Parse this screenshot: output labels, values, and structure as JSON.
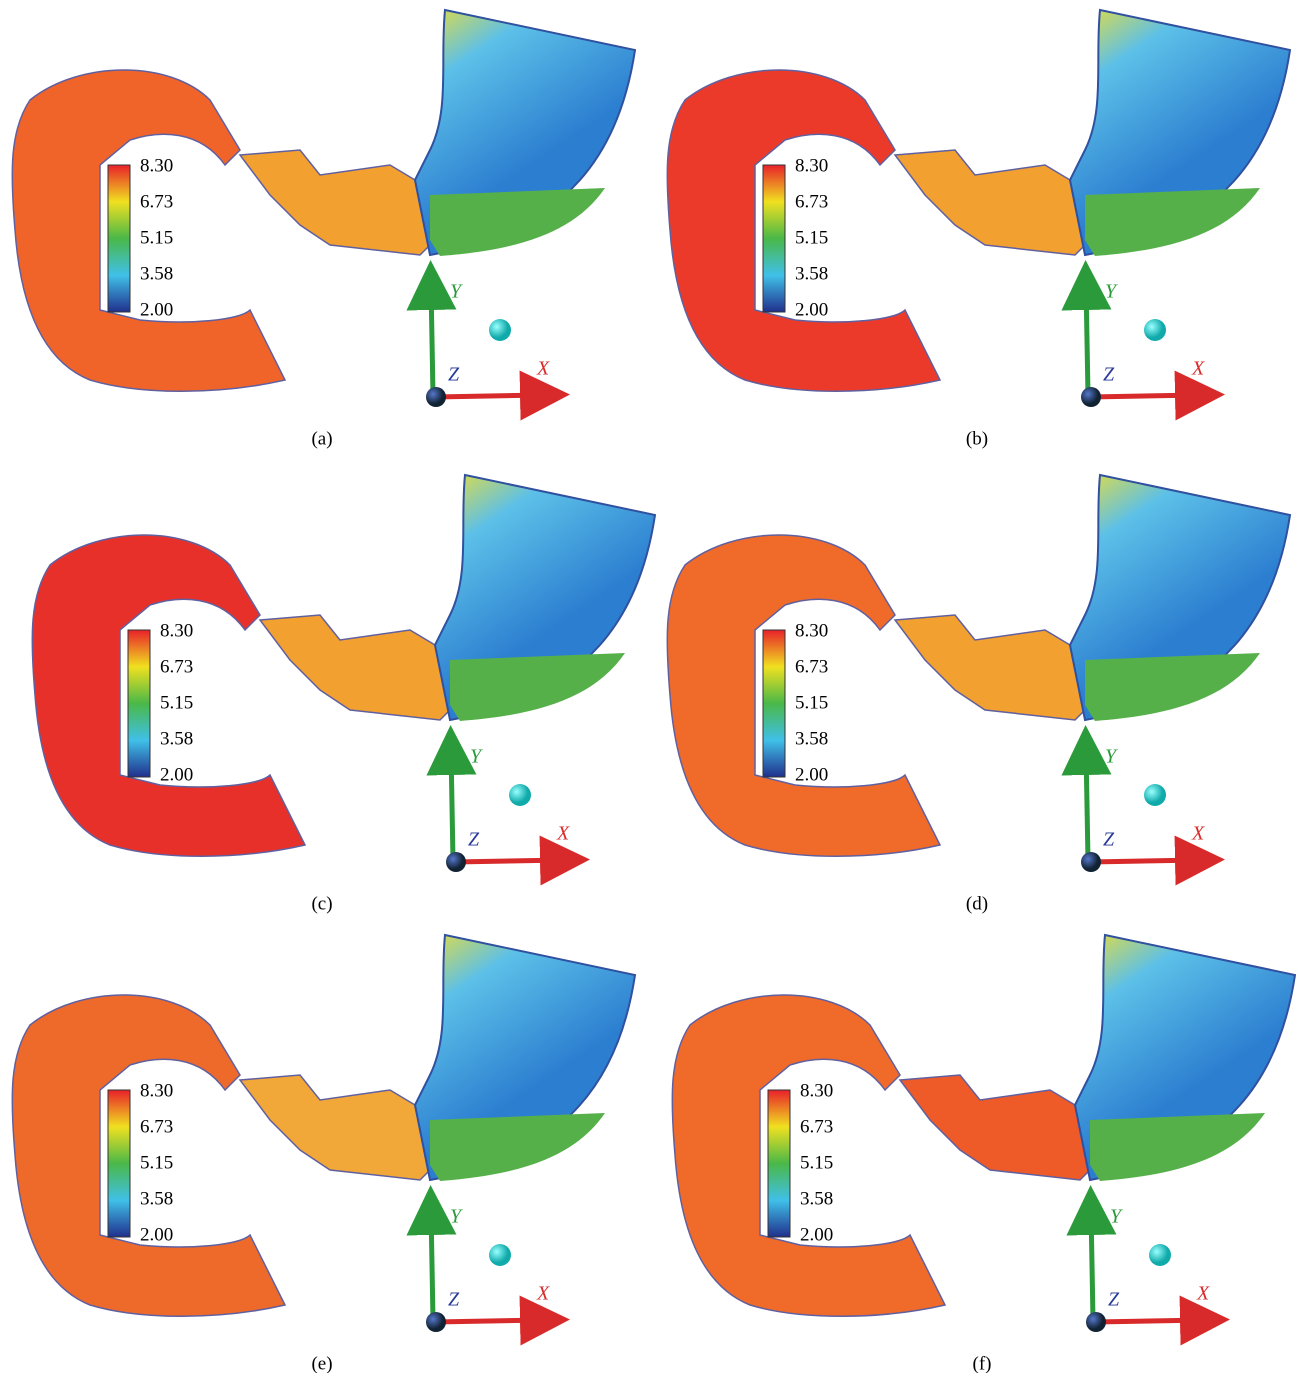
{
  "panels": [
    {
      "label": "(a)",
      "colorbar": [
        "8.30",
        "6.73",
        "5.15",
        "3.58",
        "2.00"
      ],
      "axes": {
        "y": "Y",
        "z": "Z",
        "x": "X"
      }
    },
    {
      "label": "(b)",
      "colorbar": [
        "8.30",
        "6.73",
        "5.15",
        "3.58",
        "2.00"
      ],
      "axes": {
        "y": "Y",
        "z": "Z",
        "x": "X"
      }
    },
    {
      "label": "(c)",
      "colorbar": [
        "8.30",
        "6.73",
        "5.15",
        "3.58",
        "2.00"
      ],
      "axes": {
        "y": "Y",
        "z": "Z",
        "x": "X"
      }
    },
    {
      "label": "(d)",
      "colorbar": [
        "8.30",
        "6.73",
        "5.15",
        "3.58",
        "2.00"
      ],
      "axes": {
        "y": "Y",
        "z": "Z",
        "x": "X"
      }
    },
    {
      "label": "(e)",
      "colorbar": [
        "8.30",
        "6.73",
        "5.15",
        "3.58",
        "2.00"
      ],
      "axes": {
        "y": "Y",
        "z": "Z",
        "x": "X"
      }
    },
    {
      "label": "(f)",
      "colorbar": [
        "8.30",
        "6.73",
        "5.15",
        "3.58",
        "2.00"
      ],
      "axes": {
        "y": "Y",
        "z": "Z",
        "x": "X"
      }
    }
  ]
}
